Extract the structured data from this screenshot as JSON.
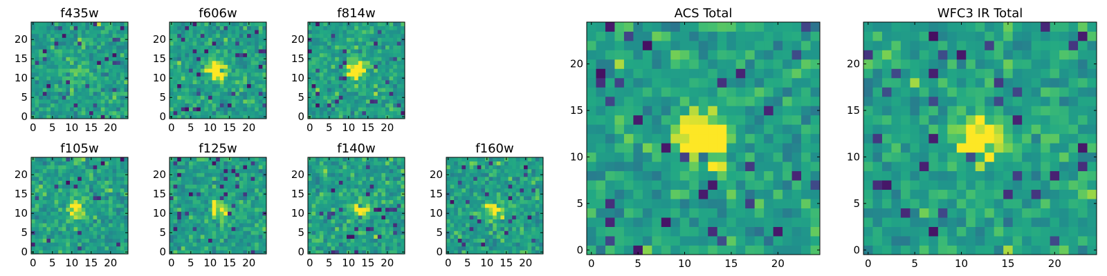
{
  "figure": {
    "seed_note": "noise heatmaps of 25x25 pixel cutouts"
  },
  "chart_data": [
    {
      "type": "heatmap",
      "title": "f435w",
      "grid": [
        25,
        25
      ],
      "xlim": [
        0,
        24
      ],
      "ylim": [
        0,
        24
      ],
      "xticks": [
        0,
        5,
        10,
        15,
        20
      ],
      "yticks": [
        0,
        5,
        10,
        15,
        20
      ],
      "colormap": "viridis",
      "peak": [
        12,
        11
      ],
      "peak_strength": 0.15
    },
    {
      "type": "heatmap",
      "title": "f606w",
      "grid": [
        25,
        25
      ],
      "xlim": [
        0,
        24
      ],
      "ylim": [
        0,
        24
      ],
      "xticks": [
        0,
        5,
        10,
        15,
        20
      ],
      "yticks": [
        0,
        5,
        10,
        15,
        20
      ],
      "colormap": "viridis",
      "peak": [
        12,
        12
      ],
      "peak_strength": 0.55
    },
    {
      "type": "heatmap",
      "title": "f814w",
      "grid": [
        25,
        25
      ],
      "xlim": [
        0,
        24
      ],
      "ylim": [
        0,
        24
      ],
      "xticks": [
        0,
        5,
        10,
        15,
        20
      ],
      "yticks": [
        0,
        5,
        10,
        15,
        20
      ],
      "colormap": "viridis",
      "peak": [
        12,
        12
      ],
      "peak_strength": 0.5
    },
    {
      "type": "heatmap",
      "title": "f105w",
      "grid": [
        25,
        25
      ],
      "xlim": [
        0,
        24
      ],
      "ylim": [
        0,
        24
      ],
      "xticks": [
        0,
        5,
        10,
        15,
        20
      ],
      "yticks": [
        0,
        5,
        10,
        15,
        20
      ],
      "colormap": "viridis",
      "peak": [
        11,
        11
      ],
      "peak_strength": 0.35
    },
    {
      "type": "heatmap",
      "title": "f125w",
      "grid": [
        25,
        25
      ],
      "xlim": [
        0,
        24
      ],
      "ylim": [
        0,
        24
      ],
      "xticks": [
        0,
        5,
        10,
        15,
        20
      ],
      "yticks": [
        0,
        5,
        10,
        15,
        20
      ],
      "colormap": "viridis",
      "peak": [
        12,
        11
      ],
      "peak_strength": 0.35
    },
    {
      "type": "heatmap",
      "title": "f140w",
      "grid": [
        25,
        25
      ],
      "xlim": [
        0,
        24
      ],
      "ylim": [
        0,
        24
      ],
      "xticks": [
        0,
        5,
        10,
        15,
        20
      ],
      "yticks": [
        0,
        5,
        10,
        15,
        20
      ],
      "colormap": "viridis",
      "peak": [
        13,
        11
      ],
      "peak_strength": 0.35
    },
    {
      "type": "heatmap",
      "title": "f160w",
      "grid": [
        25,
        25
      ],
      "xlim": [
        0,
        24
      ],
      "ylim": [
        0,
        24
      ],
      "xticks": [
        0,
        5,
        10,
        15,
        20
      ],
      "yticks": [
        0,
        5,
        10,
        15,
        20
      ],
      "colormap": "viridis",
      "peak": [
        12,
        11
      ],
      "peak_strength": 0.35
    },
    {
      "type": "heatmap",
      "title": "ACS Total",
      "grid": [
        25,
        25
      ],
      "xlim": [
        0,
        24
      ],
      "ylim": [
        0,
        24
      ],
      "xticks": [
        0,
        5,
        10,
        15,
        20
      ],
      "yticks": [
        0,
        5,
        10,
        15,
        20
      ],
      "colormap": "viridis",
      "peak": [
        12,
        12
      ],
      "peak_strength": 0.6
    },
    {
      "type": "heatmap",
      "title": "WFC3 IR Total",
      "grid": [
        25,
        25
      ],
      "xlim": [
        0,
        24
      ],
      "ylim": [
        0,
        24
      ],
      "xticks": [
        0,
        5,
        10,
        15,
        20
      ],
      "yticks": [
        0,
        5,
        10,
        15,
        20
      ],
      "colormap": "viridis",
      "peak": [
        12,
        12
      ],
      "peak_strength": 0.45
    }
  ]
}
